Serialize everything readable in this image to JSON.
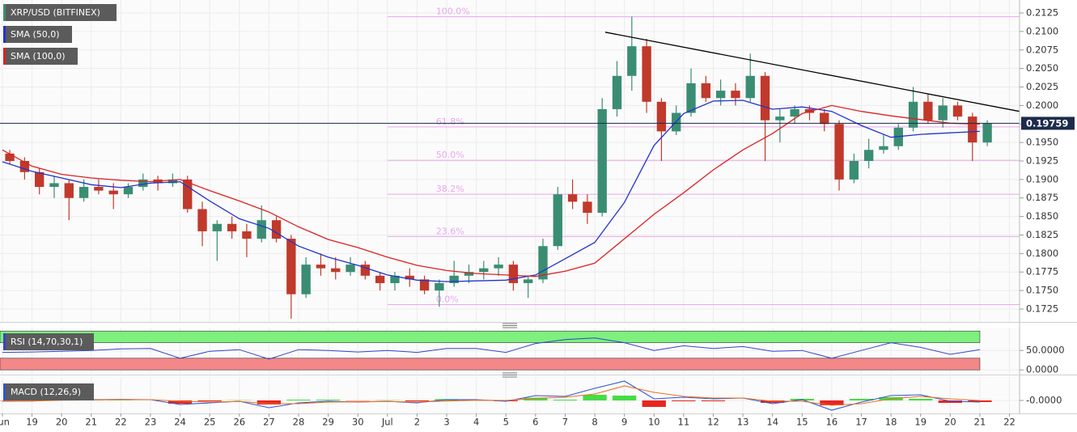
{
  "chart_data": [
    {
      "type": "candlestick",
      "name": "XRP/USD (BITFINEX)",
      "up_color": "#3a8d73",
      "down_color": "#c0392b",
      "x": [
        0.25,
        0.75,
        1.25,
        1.75,
        2.25,
        2.75,
        3.25,
        3.75,
        4.25,
        4.75,
        5.25,
        5.75,
        6.25,
        6.75,
        7.25,
        7.75,
        8.25,
        8.75,
        9.25,
        9.75,
        10.25,
        10.75,
        11.25,
        11.75,
        12.25,
        12.75,
        13.25,
        13.75,
        14.25,
        14.75,
        15.25,
        15.75,
        16.25,
        16.75,
        17.25,
        17.75,
        18.25,
        18.75,
        19.25,
        19.75,
        20.25,
        20.75,
        21.25,
        21.75,
        22.25,
        22.75,
        23.25,
        23.75,
        24.25,
        24.75,
        25.25,
        25.75,
        26.25,
        26.75,
        27.25,
        27.75,
        28.25,
        28.75,
        29.25,
        29.75,
        30.25,
        30.75,
        31.25,
        31.75,
        32.25,
        32.75,
        33.25
      ],
      "open": [
        0.1935,
        0.1925,
        0.191,
        0.189,
        0.1895,
        0.1875,
        0.189,
        0.1885,
        0.188,
        0.189,
        0.19,
        0.1895,
        0.19,
        0.186,
        0.183,
        0.184,
        0.183,
        0.182,
        0.1845,
        0.182,
        0.1745,
        0.1785,
        0.178,
        0.1775,
        0.1785,
        0.177,
        0.176,
        0.177,
        0.1765,
        0.175,
        0.176,
        0.177,
        0.1775,
        0.178,
        0.1785,
        0.176,
        0.1765,
        0.181,
        0.188,
        0.187,
        0.1855,
        0.1995,
        0.204,
        0.208,
        0.2005,
        0.1965,
        0.199,
        0.203,
        0.201,
        0.202,
        0.201,
        0.204,
        0.198,
        0.1985,
        0.1995,
        0.199,
        0.1975,
        0.19,
        0.1925,
        0.194,
        0.1945,
        0.197,
        0.2005,
        0.198,
        0.2,
        0.1985,
        0.195
      ],
      "high": [
        0.194,
        0.193,
        0.1915,
        0.1905,
        0.19,
        0.19,
        0.19,
        0.1895,
        0.1895,
        0.1908,
        0.1905,
        0.1908,
        0.1905,
        0.187,
        0.1845,
        0.185,
        0.184,
        0.1865,
        0.185,
        0.1825,
        0.1795,
        0.18,
        0.1795,
        0.1795,
        0.179,
        0.1775,
        0.1775,
        0.178,
        0.177,
        0.1765,
        0.179,
        0.1785,
        0.179,
        0.1795,
        0.179,
        0.177,
        0.182,
        0.189,
        0.19,
        0.188,
        0.201,
        0.206,
        0.212,
        0.209,
        0.201,
        0.2,
        0.205,
        0.204,
        0.2035,
        0.203,
        0.207,
        0.2045,
        0.1995,
        0.2,
        0.2,
        0.1995,
        0.198,
        0.1935,
        0.1955,
        0.196,
        0.1975,
        0.2025,
        0.2015,
        0.201,
        0.2005,
        0.199,
        0.198
      ],
      "low": [
        0.192,
        0.19,
        0.188,
        0.1875,
        0.1845,
        0.187,
        0.188,
        0.186,
        0.1875,
        0.1885,
        0.1885,
        0.189,
        0.1855,
        0.181,
        0.179,
        0.182,
        0.1795,
        0.1815,
        0.1815,
        0.1712,
        0.174,
        0.177,
        0.1765,
        0.177,
        0.1765,
        0.175,
        0.175,
        0.1755,
        0.1745,
        0.1728,
        0.1755,
        0.176,
        0.1765,
        0.177,
        0.175,
        0.174,
        0.176,
        0.1805,
        0.186,
        0.184,
        0.185,
        0.1985,
        0.202,
        0.199,
        0.1925,
        0.196,
        0.1985,
        0.2005,
        0.2,
        0.2,
        0.2005,
        0.1925,
        0.195,
        0.1975,
        0.198,
        0.1965,
        0.1885,
        0.1895,
        0.1915,
        0.1935,
        0.194,
        0.1965,
        0.1975,
        0.197,
        0.198,
        0.1925,
        0.1945
      ],
      "close": [
        0.1925,
        0.191,
        0.189,
        0.1895,
        0.1875,
        0.189,
        0.1885,
        0.188,
        0.189,
        0.19,
        0.1895,
        0.19,
        0.186,
        0.183,
        0.184,
        0.183,
        0.182,
        0.1845,
        0.182,
        0.1745,
        0.1785,
        0.178,
        0.1775,
        0.1785,
        0.177,
        0.176,
        0.177,
        0.1765,
        0.175,
        0.176,
        0.177,
        0.1775,
        0.178,
        0.1785,
        0.176,
        0.1765,
        0.181,
        0.188,
        0.187,
        0.1855,
        0.1995,
        0.204,
        0.208,
        0.2005,
        0.1965,
        0.199,
        0.203,
        0.201,
        0.202,
        0.201,
        0.204,
        0.198,
        0.1985,
        0.1995,
        0.199,
        0.1975,
        0.19,
        0.1925,
        0.194,
        0.1945,
        0.197,
        0.2005,
        0.198,
        0.2,
        0.1985,
        0.195,
        0.1976
      ],
      "series": [
        {
          "name": "SMA (50,0)",
          "color": "#2233cc",
          "x": [
            0,
            1,
            2,
            3,
            4,
            5,
            6,
            7,
            8,
            9,
            10,
            11,
            12,
            13,
            14,
            15,
            16,
            17,
            18,
            19,
            20,
            21,
            22,
            23,
            24,
            25,
            26,
            27,
            28,
            29,
            30,
            31,
            32,
            33
          ],
          "values": [
            0.1924,
            0.1911,
            0.1902,
            0.1893,
            0.1889,
            0.1895,
            0.1897,
            0.1871,
            0.1847,
            0.1834,
            0.181,
            0.1795,
            0.1784,
            0.1771,
            0.1764,
            0.1762,
            0.1763,
            0.1764,
            0.1771,
            0.1793,
            0.1815,
            0.1869,
            0.1946,
            0.1989,
            0.2006,
            0.2007,
            0.1995,
            0.1998,
            0.1992,
            0.1973,
            0.1957,
            0.1961,
            0.1963,
            0.1965
          ]
        },
        {
          "name": "SMA (100,0)",
          "color": "#dd2222",
          "x": [
            0,
            1,
            2,
            3,
            4,
            5,
            6,
            7,
            8,
            9,
            10,
            11,
            12,
            13,
            14,
            15,
            16,
            17,
            18,
            19,
            20,
            21,
            22,
            23,
            24,
            25,
            26,
            27,
            28,
            29,
            30,
            31,
            32,
            33
          ],
          "values": [
            0.194,
            0.1918,
            0.1907,
            0.1902,
            0.1899,
            0.1897,
            0.19,
            0.1885,
            0.1871,
            0.1856,
            0.1836,
            0.1819,
            0.1808,
            0.1795,
            0.1784,
            0.1777,
            0.1773,
            0.1771,
            0.1769,
            0.1776,
            0.1787,
            0.182,
            0.1853,
            0.1882,
            0.1913,
            0.194,
            0.1962,
            0.1989,
            0.2,
            0.1992,
            0.1986,
            0.1981,
            0.1976,
            0.1975
          ]
        }
      ],
      "fib": {
        "color": "#e9a6ef",
        "xstart": 13,
        "labels": [
          "100.0%",
          "61.8%",
          "50.0%",
          "38.2%",
          "23.6%",
          "0.0%"
        ],
        "values": [
          0.212,
          0.1971,
          0.1926,
          0.188,
          0.1823,
          0.1731
        ]
      },
      "trendline": {
        "color": "#000000",
        "x": [
          20.35,
          34.34
        ],
        "values": [
          0.2099,
          0.1992
        ]
      },
      "last": 0.19759,
      "last_color": "#1d2b4c",
      "ylim": [
        0.17075,
        0.21425
      ],
      "yticks": [
        0.1725,
        {
          "value": 0.175,
          "label": "0.1750"
        },
        0.1775,
        {
          "value": 0.18,
          "label": "0.1800"
        },
        0.1825,
        {
          "value": 0.185,
          "label": "0.1850"
        },
        0.1875,
        {
          "value": 0.19,
          "label": "0.1900"
        },
        0.1925,
        {
          "value": 0.195,
          "label": "0.1950"
        },
        0.1975,
        {
          "value": 0.2,
          "label": "0.2000"
        },
        0.2025,
        {
          "value": 0.205,
          "label": "0.2050"
        },
        0.2075,
        {
          "value": 0.21,
          "label": "0.2100"
        },
        0.2125
      ],
      "grid": true
    },
    {
      "type": "line",
      "series": [
        {
          "name": "RSI (14,70,30,1)",
          "color": "#3344cc",
          "x": [
            0,
            1,
            2,
            3,
            4,
            5,
            6,
            7,
            8,
            9,
            10,
            11,
            12,
            13,
            14,
            15,
            16,
            17,
            18,
            19,
            20,
            21,
            22,
            23,
            24,
            25,
            26,
            27,
            28,
            29,
            30,
            31,
            32,
            33
          ],
          "values": [
            45,
            46,
            48,
            50,
            54,
            55,
            30,
            48,
            52,
            28,
            52,
            50,
            46,
            50,
            45,
            55,
            55,
            45,
            68,
            78,
            82,
            70,
            50,
            62,
            55,
            60,
            48,
            50,
            30,
            50,
            70,
            58,
            40,
            52
          ]
        }
      ],
      "bands": [
        {
          "from": 70,
          "to": 100,
          "color": "#7ef07e"
        },
        {
          "from": 0,
          "to": 30,
          "color": "#f48787"
        }
      ],
      "ylim": [
        -10,
        108.75
      ],
      "yticks": [
        {
          "value": 50,
          "label": "50.0000"
        },
        {
          "value": 0,
          "label": "0.0000"
        }
      ],
      "grid": true
    },
    {
      "type": "macd",
      "title": "MACD (12,26,9)",
      "x": [
        0,
        1,
        2,
        3,
        4,
        5,
        6,
        7,
        8,
        9,
        10,
        11,
        12,
        13,
        14,
        15,
        16,
        17,
        18,
        19,
        20,
        21,
        22,
        23,
        24,
        25,
        26,
        27,
        28,
        29,
        30,
        31,
        32,
        33
      ],
      "series": [
        {
          "color": "#2d55d8",
          "values": [
            -0.0003,
            -0.0002,
            0.0003,
            0.0003,
            0.0004,
            0.0003,
            -0.0015,
            -0.0009,
            -0.0003,
            -0.0027,
            -0.0009,
            -0.0003,
            -0.0006,
            -0.0003,
            -0.0009,
            0.0003,
            0.0003,
            -0.0003,
            0.0018,
            0.0015,
            0.0045,
            0.0072,
            0.0006,
            0.0012,
            0.0006,
            0.0009,
            -0.0012,
            0.0003,
            -0.0036,
            -0.0006,
            0.0018,
            0.0021,
            -0.0003,
            -0.0006
          ]
        },
        {
          "color": "#f07020",
          "values": [
            -0.0002,
            -0.0002,
            0.0001,
            0.0002,
            0.0003,
            0.0003,
            -0.0003,
            -0.0006,
            -0.0004,
            -0.0012,
            -0.0012,
            -0.0006,
            -0.0005,
            -0.0004,
            -0.0006,
            -0.0002,
            0.0001,
            0,
            0.0008,
            0.0012,
            0.0024,
            0.0054,
            0.003,
            0.0015,
            0.0009,
            0.0009,
            -0.0003,
            -0.0003,
            -0.0018,
            -0.0012,
            0.0006,
            0.0015,
            0.0006,
            0
          ]
        }
      ],
      "histogram": {
        "up_color": "#44dd44",
        "down_color": "#e8251f",
        "values": [
          -0.0001,
          0,
          0.0002,
          0.0001,
          0.0001,
          0,
          -0.0012,
          -0.0003,
          0.0001,
          -0.0015,
          0.0003,
          0.0003,
          -0.0001,
          0.0001,
          -0.0003,
          0.0005,
          0.0002,
          -0.0003,
          0.001,
          0.0003,
          0.0021,
          0.0018,
          -0.0024,
          -0.0003,
          -0.0003,
          0,
          -0.0009,
          0.0006,
          -0.0018,
          0.0006,
          0.0012,
          0.0006,
          -0.0009,
          -0.0006
        ]
      },
      "ylim": [
        -0.0045,
        0.0087
      ],
      "yticks": [
        {
          "value": 0,
          "label": "-0.0000"
        }
      ],
      "xlim": [
        -0.08,
        34.34
      ],
      "xticks": [
        {
          "value": 0,
          "label": "Jun"
        },
        {
          "value": 1,
          "label": "19"
        },
        {
          "value": 2,
          "label": "20"
        },
        {
          "value": 3,
          "label": "21"
        },
        {
          "value": 4,
          "label": "22"
        },
        {
          "value": 5,
          "label": "23"
        },
        {
          "value": 6,
          "label": "24"
        },
        {
          "value": 7,
          "label": "25"
        },
        {
          "value": 8,
          "label": "26"
        },
        {
          "value": 9,
          "label": "27"
        },
        {
          "value": 10,
          "label": "28"
        },
        {
          "value": 11,
          "label": "29"
        },
        {
          "value": 12,
          "label": "30"
        },
        {
          "value": 13,
          "label": "Jul"
        },
        {
          "value": 14,
          "label": "2"
        },
        {
          "value": 15,
          "label": "3"
        },
        {
          "value": 16,
          "label": "4"
        },
        {
          "value": 17,
          "label": "5"
        },
        {
          "value": 18,
          "label": "6"
        },
        {
          "value": 19,
          "label": "7"
        },
        {
          "value": 20,
          "label": "8"
        },
        {
          "value": 21,
          "label": "9"
        },
        {
          "value": 22,
          "label": "10"
        },
        {
          "value": 23,
          "label": "11"
        },
        {
          "value": 24,
          "label": "12"
        },
        {
          "value": 25,
          "label": "13"
        },
        {
          "value": 26,
          "label": "14"
        },
        {
          "value": 27,
          "label": "15"
        },
        {
          "value": 28,
          "label": "16"
        },
        {
          "value": 29,
          "label": "17"
        },
        {
          "value": 30,
          "label": "18"
        },
        {
          "value": 31,
          "label": "19"
        },
        {
          "value": 32,
          "label": "20"
        },
        {
          "value": 33,
          "label": "21"
        },
        {
          "value": 34,
          "label": "22"
        }
      ],
      "grid": true
    }
  ]
}
